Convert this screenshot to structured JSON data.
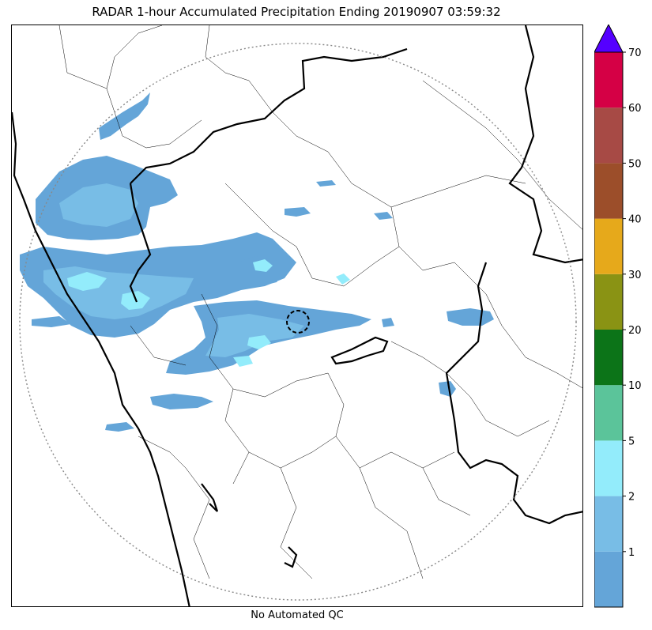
{
  "title": "RADAR 1-hour Accumulated Precipitation Ending 20190907 03:59:32",
  "footer": "No Automated QC",
  "colorbar": {
    "levels": [
      {
        "label": "",
        "color": "#64a5d8"
      },
      {
        "label": "1",
        "color": "#78bde6"
      },
      {
        "label": "2",
        "color": "#93ecfb"
      },
      {
        "label": "5",
        "color": "#5bc49a"
      },
      {
        "label": "10",
        "color": "#0c7418"
      },
      {
        "label": "20",
        "color": "#8a9314"
      },
      {
        "label": "30",
        "color": "#e6a91b"
      },
      {
        "label": "40",
        "color": "#9c4e2a"
      },
      {
        "label": "50",
        "color": "#a74a45"
      },
      {
        "label": "60",
        "color": "#d50045"
      }
    ],
    "top_label": "70",
    "extend_color": "#5500ff"
  },
  "colors": {
    "light_rain": "#64a5d8",
    "moderate_rain": "#78bde6",
    "heavy_rain": "#93ecfb",
    "coastline": "#000000",
    "range_ring": "#888888"
  }
}
